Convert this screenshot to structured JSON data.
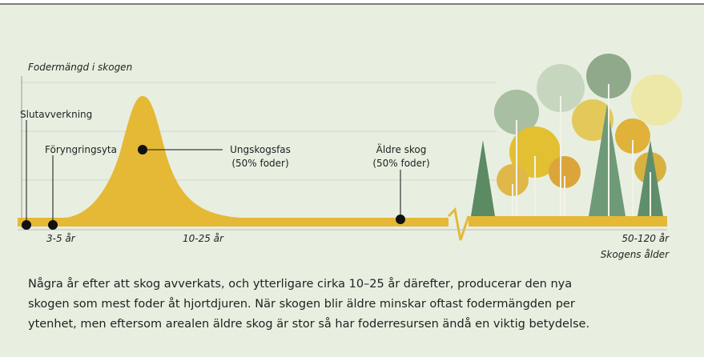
{
  "axis_label": "Fodermängd i skogen",
  "markers": [
    {
      "label": "Slutavverkning"
    },
    {
      "label": "Föryngringsyta"
    },
    {
      "label": [
        "Ungskogsfas",
        "(50% foder)"
      ]
    },
    {
      "label": [
        "Äldre skog",
        "(50% foder)"
      ]
    }
  ],
  "ticks": [
    "3-5 år",
    "10-25 år",
    "50-120 år"
  ],
  "x_axis_title": "Skogens ålder",
  "caption": [
    "Några år efter att skog avverkats, och ytterligare cirka 10–25 år därefter, producerar den nya",
    "skogen som mest foder åt hjortdjuren. När skogen blir äldre minskar oftast fodermängden per",
    "ytenhet, men eftersom arealen äldre skog är stor så har foderresursen ändå en viktig betydelse."
  ]
}
